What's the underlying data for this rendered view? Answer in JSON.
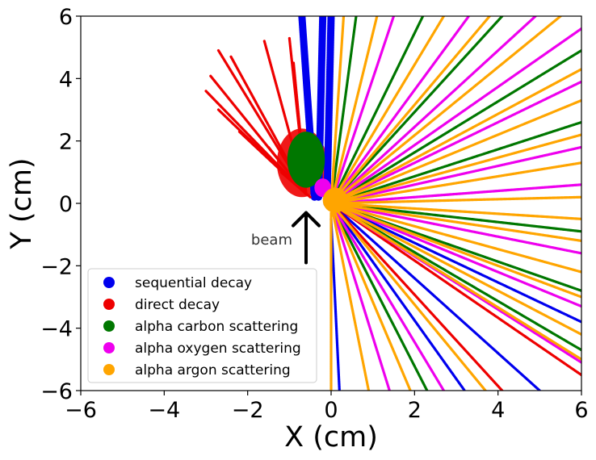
{
  "chart_data": {
    "type": "scatter",
    "title": "",
    "xlabel": "X (cm)",
    "ylabel": "Y (cm)",
    "xlim": [
      -6,
      6
    ],
    "ylim": [
      -6,
      6
    ],
    "xticks": [
      -6,
      -4,
      -2,
      0,
      2,
      4,
      6
    ],
    "yticks": [
      -6,
      -4,
      -2,
      0,
      2,
      4,
      6
    ],
    "xtick_labels": [
      "−6",
      "−4",
      "−2",
      "0",
      "2",
      "4",
      "6"
    ],
    "ytick_labels": [
      "−6",
      "−4",
      "−2",
      "0",
      "2",
      "4",
      "6"
    ],
    "grid": false,
    "legend_position": "lower-left",
    "series": [
      {
        "name": "sequential decay",
        "color": "#0000ee",
        "description": "dense vertical band upward near x≈-0.4, plus tracks toward lower right",
        "tracks": [
          {
            "from": [
              -0.4,
              0.2
            ],
            "to": [
              -0.7,
              6.0
            ]
          },
          {
            "from": [
              -0.3,
              0.2
            ],
            "to": [
              -0.2,
              6.0
            ]
          },
          {
            "from": [
              -0.1,
              0.0
            ],
            "to": [
              0.0,
              6.0
            ]
          },
          {
            "from": [
              0.0,
              0.0
            ],
            "to": [
              3.2,
              -6.0
            ]
          },
          {
            "from": [
              0.0,
              0.0
            ],
            "to": [
              5.0,
              -6.0
            ]
          },
          {
            "from": [
              0.0,
              0.0
            ],
            "to": [
              6.0,
              -3.8
            ]
          },
          {
            "from": [
              0.0,
              -0.5
            ],
            "to": [
              0.2,
              -6.0
            ]
          }
        ]
      },
      {
        "name": "direct decay",
        "color": "#ee0000",
        "description": "fan of tracks toward upper left from around (-0.5, 0.2)",
        "tracks": [
          {
            "from": [
              -0.6,
              0.3
            ],
            "to": [
              -2.7,
              4.9
            ]
          },
          {
            "from": [
              -0.6,
              0.3
            ],
            "to": [
              -2.4,
              4.7
            ]
          },
          {
            "from": [
              -0.6,
              0.3
            ],
            "to": [
              -2.9,
              4.1
            ]
          },
          {
            "from": [
              -0.6,
              0.3
            ],
            "to": [
              -3.0,
              3.6
            ]
          },
          {
            "from": [
              -0.6,
              0.3
            ],
            "to": [
              -2.7,
              3.0
            ]
          },
          {
            "from": [
              -0.6,
              0.3
            ],
            "to": [
              -2.2,
              2.3
            ]
          },
          {
            "from": [
              -0.6,
              0.3
            ],
            "to": [
              -1.5,
              1.8
            ]
          },
          {
            "from": [
              -0.6,
              0.3
            ],
            "to": [
              -1.6,
              5.2
            ]
          },
          {
            "from": [
              -0.6,
              0.3
            ],
            "to": [
              -1.0,
              5.3
            ]
          },
          {
            "from": [
              -0.6,
              0.3
            ],
            "to": [
              -0.9,
              4.5
            ]
          },
          {
            "from": [
              -0.5,
              0.2
            ],
            "to": [
              -1.2,
              1.0
            ]
          },
          {
            "from": [
              0.0,
              0.0
            ],
            "to": [
              4.1,
              -6.0
            ]
          },
          {
            "from": [
              0.0,
              0.0
            ],
            "to": [
              6.0,
              -5.5
            ]
          }
        ]
      },
      {
        "name": "alpha carbon scattering",
        "color": "#007700",
        "description": "green blob near (-0.6, 1.4) and tracks to the right",
        "tracks": [
          {
            "from": [
              0.0,
              0.0
            ],
            "to": [
              4.1,
              6.0
            ]
          },
          {
            "from": [
              0.0,
              0.0
            ],
            "to": [
              6.0,
              4.9
            ]
          },
          {
            "from": [
              0.0,
              0.0
            ],
            "to": [
              6.0,
              2.6
            ]
          },
          {
            "from": [
              0.0,
              0.0
            ],
            "to": [
              6.0,
              -0.9
            ]
          },
          {
            "from": [
              0.0,
              0.0
            ],
            "to": [
              6.0,
              -2.8
            ]
          },
          {
            "from": [
              0.0,
              0.0
            ],
            "to": [
              6.0,
              -4.7
            ]
          },
          {
            "from": [
              0.0,
              0.0
            ],
            "to": [
              2.3,
              -6.0
            ]
          },
          {
            "from": [
              0.0,
              0.0
            ],
            "to": [
              2.2,
              6.0
            ]
          },
          {
            "from": [
              0.0,
              0.0
            ],
            "to": [
              0.6,
              6.0
            ]
          }
        ]
      },
      {
        "name": "alpha oxygen scattering",
        "color": "#ee00ee",
        "description": "magenta blob near (-0.2, 0.5) and many tracks to the right",
        "tracks": [
          {
            "from": [
              0.0,
              0.0
            ],
            "to": [
              3.3,
              6.0
            ]
          },
          {
            "from": [
              0.0,
              0.0
            ],
            "to": [
              4.9,
              6.0
            ]
          },
          {
            "from": [
              0.0,
              0.0
            ],
            "to": [
              6.0,
              5.6
            ]
          },
          {
            "from": [
              0.0,
              0.0
            ],
            "to": [
              6.0,
              3.9
            ]
          },
          {
            "from": [
              0.0,
              0.0
            ],
            "to": [
              6.0,
              1.8
            ]
          },
          {
            "from": [
              0.0,
              0.0
            ],
            "to": [
              6.0,
              0.6
            ]
          },
          {
            "from": [
              0.0,
              0.0
            ],
            "to": [
              6.0,
              -1.6
            ]
          },
          {
            "from": [
              0.0,
              0.0
            ],
            "to": [
              6.0,
              -3.3
            ]
          },
          {
            "from": [
              0.0,
              0.0
            ],
            "to": [
              6.0,
              -5.1
            ]
          },
          {
            "from": [
              0.0,
              0.0
            ],
            "to": [
              1.4,
              -6.0
            ]
          },
          {
            "from": [
              0.0,
              0.0
            ],
            "to": [
              2.7,
              -6.0
            ]
          },
          {
            "from": [
              0.0,
              0.0
            ],
            "to": [
              1.5,
              6.0
            ]
          }
        ]
      },
      {
        "name": "alpha argon scattering",
        "color": "#ffa500",
        "description": "dense fan of orange tracks toward the right from the origin",
        "tracks": [
          {
            "from": [
              0.0,
              0.0
            ],
            "to": [
              0.3,
              6.0
            ]
          },
          {
            "from": [
              0.0,
              0.0
            ],
            "to": [
              1.1,
              6.0
            ]
          },
          {
            "from": [
              0.0,
              0.0
            ],
            "to": [
              2.7,
              6.0
            ]
          },
          {
            "from": [
              0.0,
              0.0
            ],
            "to": [
              3.8,
              6.0
            ]
          },
          {
            "from": [
              0.0,
              0.0
            ],
            "to": [
              5.5,
              6.0
            ]
          },
          {
            "from": [
              0.0,
              0.0
            ],
            "to": [
              6.0,
              4.3
            ]
          },
          {
            "from": [
              0.0,
              0.0
            ],
            "to": [
              6.0,
              3.3
            ]
          },
          {
            "from": [
              0.0,
              0.0
            ],
            "to": [
              6.0,
              2.2
            ]
          },
          {
            "from": [
              0.0,
              0.0
            ],
            "to": [
              6.0,
              1.3
            ]
          },
          {
            "from": [
              0.0,
              0.0
            ],
            "to": [
              6.0,
              0.2
            ]
          },
          {
            "from": [
              0.0,
              0.0
            ],
            "to": [
              6.0,
              -0.5
            ]
          },
          {
            "from": [
              0.0,
              0.0
            ],
            "to": [
              6.0,
              -1.2
            ]
          },
          {
            "from": [
              0.0,
              0.0
            ],
            "to": [
              6.0,
              -2.2
            ]
          },
          {
            "from": [
              0.0,
              0.0
            ],
            "to": [
              6.0,
              -3.0
            ]
          },
          {
            "from": [
              0.0,
              0.0
            ],
            "to": [
              6.0,
              -4.2
            ]
          },
          {
            "from": [
              0.0,
              0.0
            ],
            "to": [
              6.0,
              -5.0
            ]
          },
          {
            "from": [
              0.0,
              0.0
            ],
            "to": [
              3.7,
              -6.0
            ]
          },
          {
            "from": [
              0.0,
              0.0
            ],
            "to": [
              1.9,
              -6.0
            ]
          },
          {
            "from": [
              0.0,
              0.0
            ],
            "to": [
              0.9,
              -6.0
            ]
          },
          {
            "from": [
              0.0,
              -0.3
            ],
            "to": [
              0.0,
              -6.0
            ]
          }
        ]
      }
    ],
    "blobs": [
      {
        "series": "direct decay",
        "center": [
          -0.7,
          1.3
        ],
        "rx": 0.6,
        "ry": 1.1,
        "color": "#ee0000"
      },
      {
        "series": "alpha carbon scattering",
        "center": [
          -0.6,
          1.4
        ],
        "rx": 0.45,
        "ry": 0.9,
        "color": "#007700"
      },
      {
        "series": "alpha oxygen scattering",
        "center": [
          -0.2,
          0.5
        ],
        "rx": 0.2,
        "ry": 0.3,
        "color": "#ee00ee"
      },
      {
        "series": "alpha argon scattering",
        "center": [
          0.1,
          0.1
        ],
        "rx": 0.3,
        "ry": 0.4,
        "color": "#ffa500"
      }
    ],
    "annotations": [
      {
        "text": "beam",
        "arrow_from": [
          -0.6,
          -1.9
        ],
        "arrow_to": [
          -0.6,
          -0.3
        ]
      }
    ]
  }
}
